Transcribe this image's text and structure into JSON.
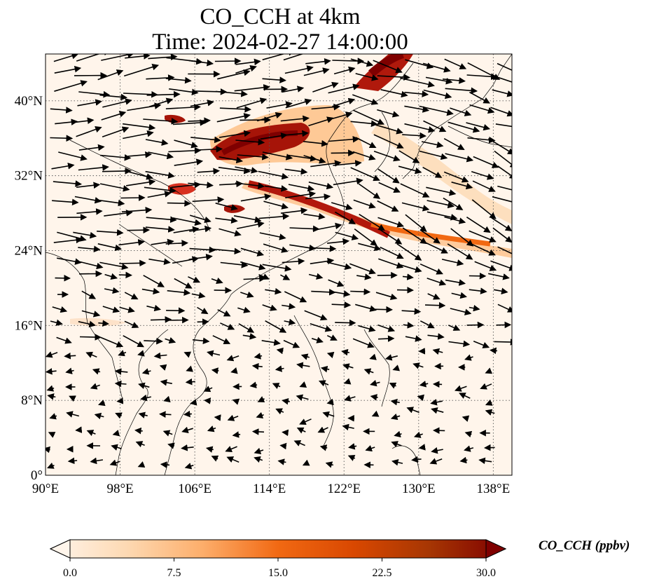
{
  "title": {
    "line1": "CO_CCH at 4km",
    "line2": "Time: 2024-02-27 14:00:00"
  },
  "map": {
    "lon_range": [
      90,
      140
    ],
    "lat_range": [
      0,
      45
    ],
    "lon_ticks": [
      "90°E",
      "98°E",
      "106°E",
      "114°E",
      "122°E",
      "130°E",
      "138°E"
    ],
    "lat_ticks": [
      "0°",
      "8°N",
      "16°N",
      "24°N",
      "32°N",
      "40°N"
    ],
    "gridlines": true,
    "background_color": "#fff5eb",
    "plume_color": "#8b0000",
    "coastline_color": "#000000"
  },
  "colorbar": {
    "label": "CO_CCH (ppbv)",
    "ticks": [
      "0.0",
      "7.5",
      "15.0",
      "22.5",
      "30.0"
    ],
    "vmin": 0,
    "vmax": 30,
    "extend": "both",
    "colors": [
      "#fff5eb",
      "#fdd9b3",
      "#fdae6b",
      "#f16913",
      "#d94801",
      "#a63603",
      "#7f0000"
    ]
  }
}
